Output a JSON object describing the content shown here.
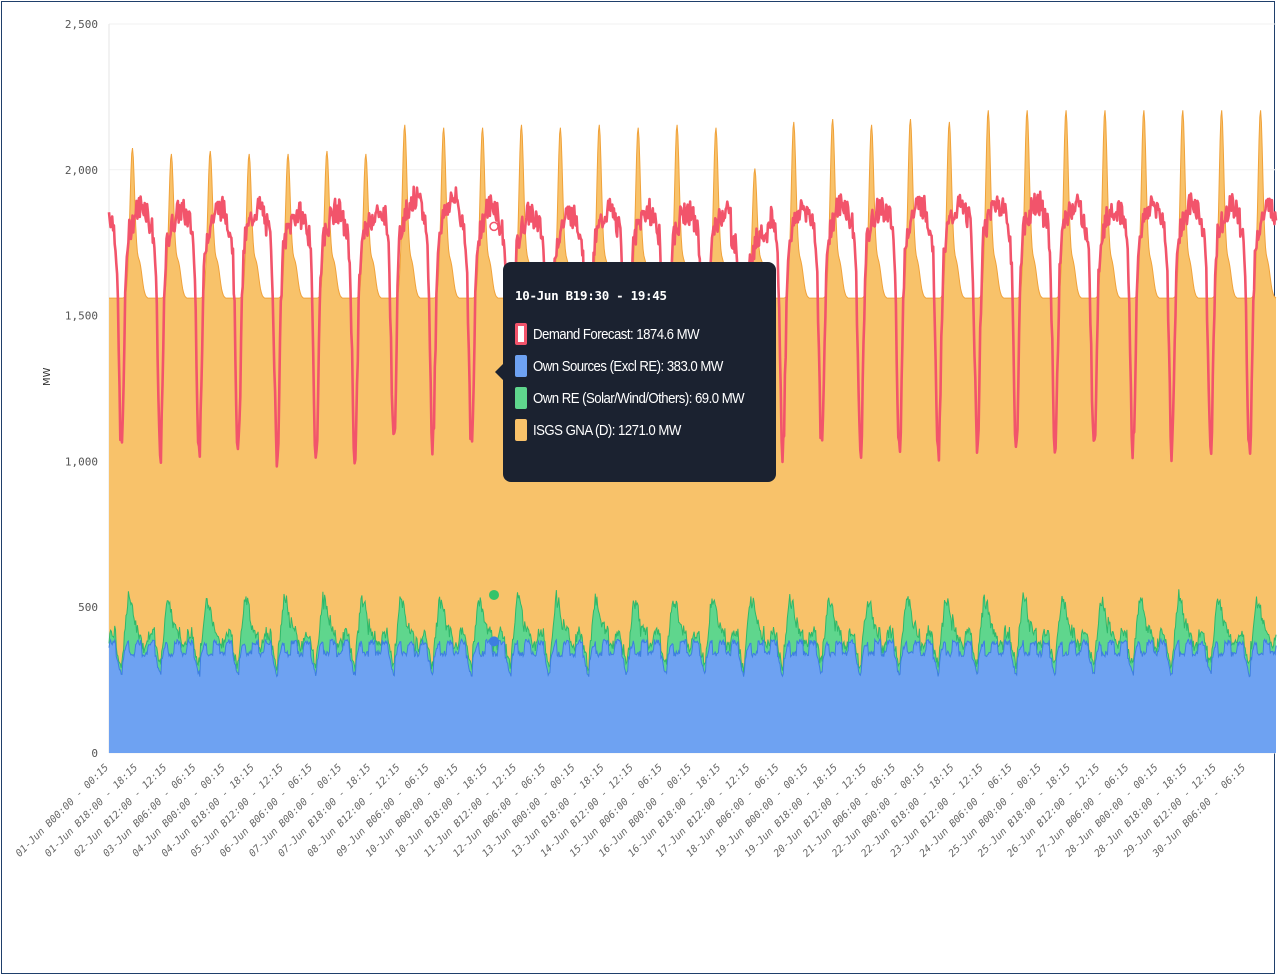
{
  "chart_data": {
    "type": "area",
    "ylabel": "MW",
    "ylim": [
      0,
      2500
    ],
    "yticks": [
      "0",
      "500",
      "1,000",
      "1,500",
      "2,000",
      "2,500"
    ],
    "x_tick_labels": [
      "01-Jun B00:00 - 00:15",
      "01-Jun B18:00 - 18:15",
      "02-Jun B12:00 - 12:15",
      "03-Jun B06:00 - 06:15",
      "04-Jun B00:00 - 00:15",
      "04-Jun B18:00 - 18:15",
      "05-Jun B12:00 - 12:15",
      "06-Jun B06:00 - 06:15",
      "07-Jun B00:00 - 00:15",
      "07-Jun B18:00 - 18:15",
      "08-Jun B12:00 - 12:15",
      "09-Jun B06:00 - 06:15",
      "10-Jun B00:00 - 00:15",
      "10-Jun B18:00 - 18:15",
      "11-Jun B12:00 - 12:15",
      "12-Jun B06:00 - 06:15",
      "13-Jun B00:00 - 00:15",
      "13-Jun B18:00 - 18:15",
      "14-Jun B12:00 - 12:15",
      "15-Jun B06:00 - 06:15",
      "16-Jun B00:00 - 00:15",
      "16-Jun B18:00 - 18:15",
      "17-Jun B12:00 - 12:15",
      "18-Jun B06:00 - 06:15",
      "19-Jun B00:00 - 00:15",
      "19-Jun B18:00 - 18:15",
      "20-Jun B12:00 - 12:15",
      "21-Jun B06:00 - 06:15",
      "22-Jun B00:00 - 00:15",
      "22-Jun B18:00 - 18:15",
      "23-Jun B12:00 - 12:15",
      "24-Jun B06:00 - 06:15",
      "25-Jun B00:00 - 00:15",
      "25-Jun B18:00 - 18:15",
      "26-Jun B12:00 - 12:15",
      "27-Jun B06:00 - 06:15",
      "28-Jun B00:00 - 00:15",
      "28-Jun B18:00 - 18:15",
      "29-Jun B12:00 - 12:15",
      "30-Jun B06:00 - 06:15"
    ],
    "days": 30,
    "daily_peaks": [
      {
        "day": "01-Jun",
        "isgs_stack_peak": 2070,
        "demand_peak": 1880
      },
      {
        "day": "02-Jun",
        "isgs_stack_peak": 2050,
        "demand_peak": 1860
      },
      {
        "day": "03-Jun",
        "isgs_stack_peak": 2060,
        "demand_peak": 1870
      },
      {
        "day": "04-Jun",
        "isgs_stack_peak": 2050,
        "demand_peak": 1870
      },
      {
        "day": "05-Jun",
        "isgs_stack_peak": 2050,
        "demand_peak": 1850
      },
      {
        "day": "06-Jun",
        "isgs_stack_peak": 2060,
        "demand_peak": 1860
      },
      {
        "day": "07-Jun",
        "isgs_stack_peak": 2050,
        "demand_peak": 1850
      },
      {
        "day": "08-Jun",
        "isgs_stack_peak": 2150,
        "demand_peak": 1900
      },
      {
        "day": "09-Jun",
        "isgs_stack_peak": 2140,
        "demand_peak": 1900
      },
      {
        "day": "10-Jun",
        "isgs_stack_peak": 2140,
        "demand_peak": 1880
      },
      {
        "day": "11-Jun",
        "isgs_stack_peak": 2150,
        "demand_peak": 1850
      },
      {
        "day": "12-Jun",
        "isgs_stack_peak": 2140,
        "demand_peak": 1850
      },
      {
        "day": "13-Jun",
        "isgs_stack_peak": 2150,
        "demand_peak": 1860
      },
      {
        "day": "14-Jun",
        "isgs_stack_peak": 2140,
        "demand_peak": 1860
      },
      {
        "day": "15-Jun",
        "isgs_stack_peak": 2150,
        "demand_peak": 1860
      },
      {
        "day": "16-Jun",
        "isgs_stack_peak": 2140,
        "demand_peak": 1860
      },
      {
        "day": "17-Jun",
        "isgs_stack_peak": 2000,
        "demand_peak": 1800
      },
      {
        "day": "18-Jun",
        "isgs_stack_peak": 2160,
        "demand_peak": 1870
      },
      {
        "day": "19-Jun",
        "isgs_stack_peak": 2170,
        "demand_peak": 1880
      },
      {
        "day": "20-Jun",
        "isgs_stack_peak": 2150,
        "demand_peak": 1870
      },
      {
        "day": "21-Jun",
        "isgs_stack_peak": 2170,
        "demand_peak": 1880
      },
      {
        "day": "22-Jun",
        "isgs_stack_peak": 2160,
        "demand_peak": 1870
      },
      {
        "day": "23-Jun",
        "isgs_stack_peak": 2200,
        "demand_peak": 1890
      },
      {
        "day": "24-Jun",
        "isgs_stack_peak": 2200,
        "demand_peak": 1890
      },
      {
        "day": "25-Jun",
        "isgs_stack_peak": 2200,
        "demand_peak": 1880
      },
      {
        "day": "26-Jun",
        "isgs_stack_peak": 2200,
        "demand_peak": 1870
      },
      {
        "day": "27-Jun",
        "isgs_stack_peak": 2200,
        "demand_peak": 1880
      },
      {
        "day": "28-Jun",
        "isgs_stack_peak": 2200,
        "demand_peak": 1880
      },
      {
        "day": "29-Jun",
        "isgs_stack_peak": 2200,
        "demand_peak": 1880
      },
      {
        "day": "30-Jun",
        "isgs_stack_peak": 2200,
        "demand_peak": 1870
      }
    ],
    "series": [
      {
        "name": "Own Sources (Excl RE)",
        "color": "#6ea2f2",
        "typical_range": [
          240,
          400
        ]
      },
      {
        "name": "Own RE (Solar/Wind/Others)",
        "color": "#5fd68d",
        "typical_range": [
          0,
          180
        ]
      },
      {
        "name": "ISGS GNA (D)",
        "color": "#f8c26a",
        "typical_range": [
          900,
          1700
        ]
      },
      {
        "name": "Demand Forecast",
        "color": "#f2546b",
        "typical_range": [
          1100,
          1900
        ]
      }
    ],
    "tooltip": {
      "title": "10-Jun B19:30 - 19:45",
      "rows": [
        {
          "label": "Demand Forecast: 1874.6 MW",
          "color": "#f2546b",
          "style": "outline"
        },
        {
          "label": "Own Sources (Excl RE): 383.0 MW",
          "color": "#6ea2f2",
          "style": "fill"
        },
        {
          "label": "Own RE (Solar/Wind/Others): 69.0 MW",
          "color": "#5fd68d",
          "style": "fill"
        },
        {
          "label": "ISGS GNA (D): 1271.0 MW",
          "color": "#f8c26a",
          "style": "fill"
        }
      ],
      "hover_values": {
        "demand": 1874.6,
        "own_sources": 383.0,
        "own_re": 69.0,
        "isgs": 1271.0
      }
    }
  }
}
